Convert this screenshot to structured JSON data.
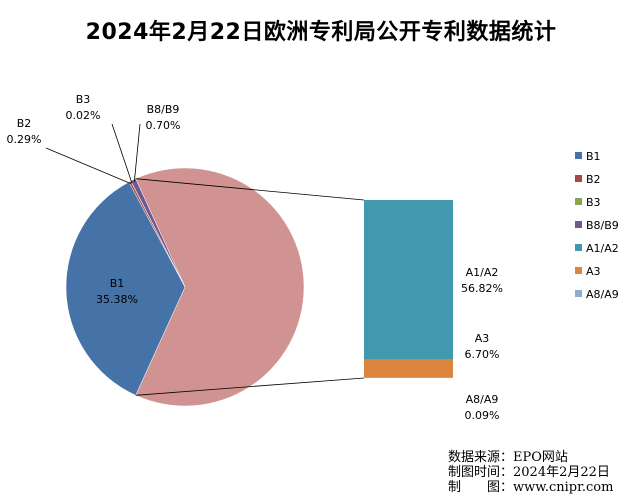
{
  "chart_data": {
    "type": "pie",
    "title": "2024年2月22日欧洲专利局公开专利数据统计",
    "slices": [
      {
        "name": "B1",
        "value": 35.38,
        "label": "35.38%",
        "color": "#4572a7"
      },
      {
        "name": "B2",
        "value": 0.29,
        "label": "0.29%",
        "color": "#aa4643"
      },
      {
        "name": "B3",
        "value": 0.02,
        "label": "0.02%",
        "color": "#89a54e"
      },
      {
        "name": "B8/B9",
        "value": 0.7,
        "label": "0.70%",
        "color": "#71588f"
      },
      {
        "name": "A1/A2",
        "value": 56.82,
        "label": "56.82%",
        "color": "#4198af"
      },
      {
        "name": "A3",
        "value": 6.7,
        "label": "6.70%",
        "color": "#db843d"
      },
      {
        "name": "A8/A9",
        "value": 0.09,
        "label": "0.09%",
        "color": "#93a9cf"
      }
    ],
    "combined_slice": {
      "members": [
        "A1/A2",
        "A3",
        "A8/A9"
      ],
      "color": "#d09391"
    },
    "legend_position": "right"
  },
  "source": {
    "line1": "数据来源：EPO网站",
    "line2": "制图时间：2024年2月22日",
    "line3": "制　　图：www.cnipr.com"
  }
}
